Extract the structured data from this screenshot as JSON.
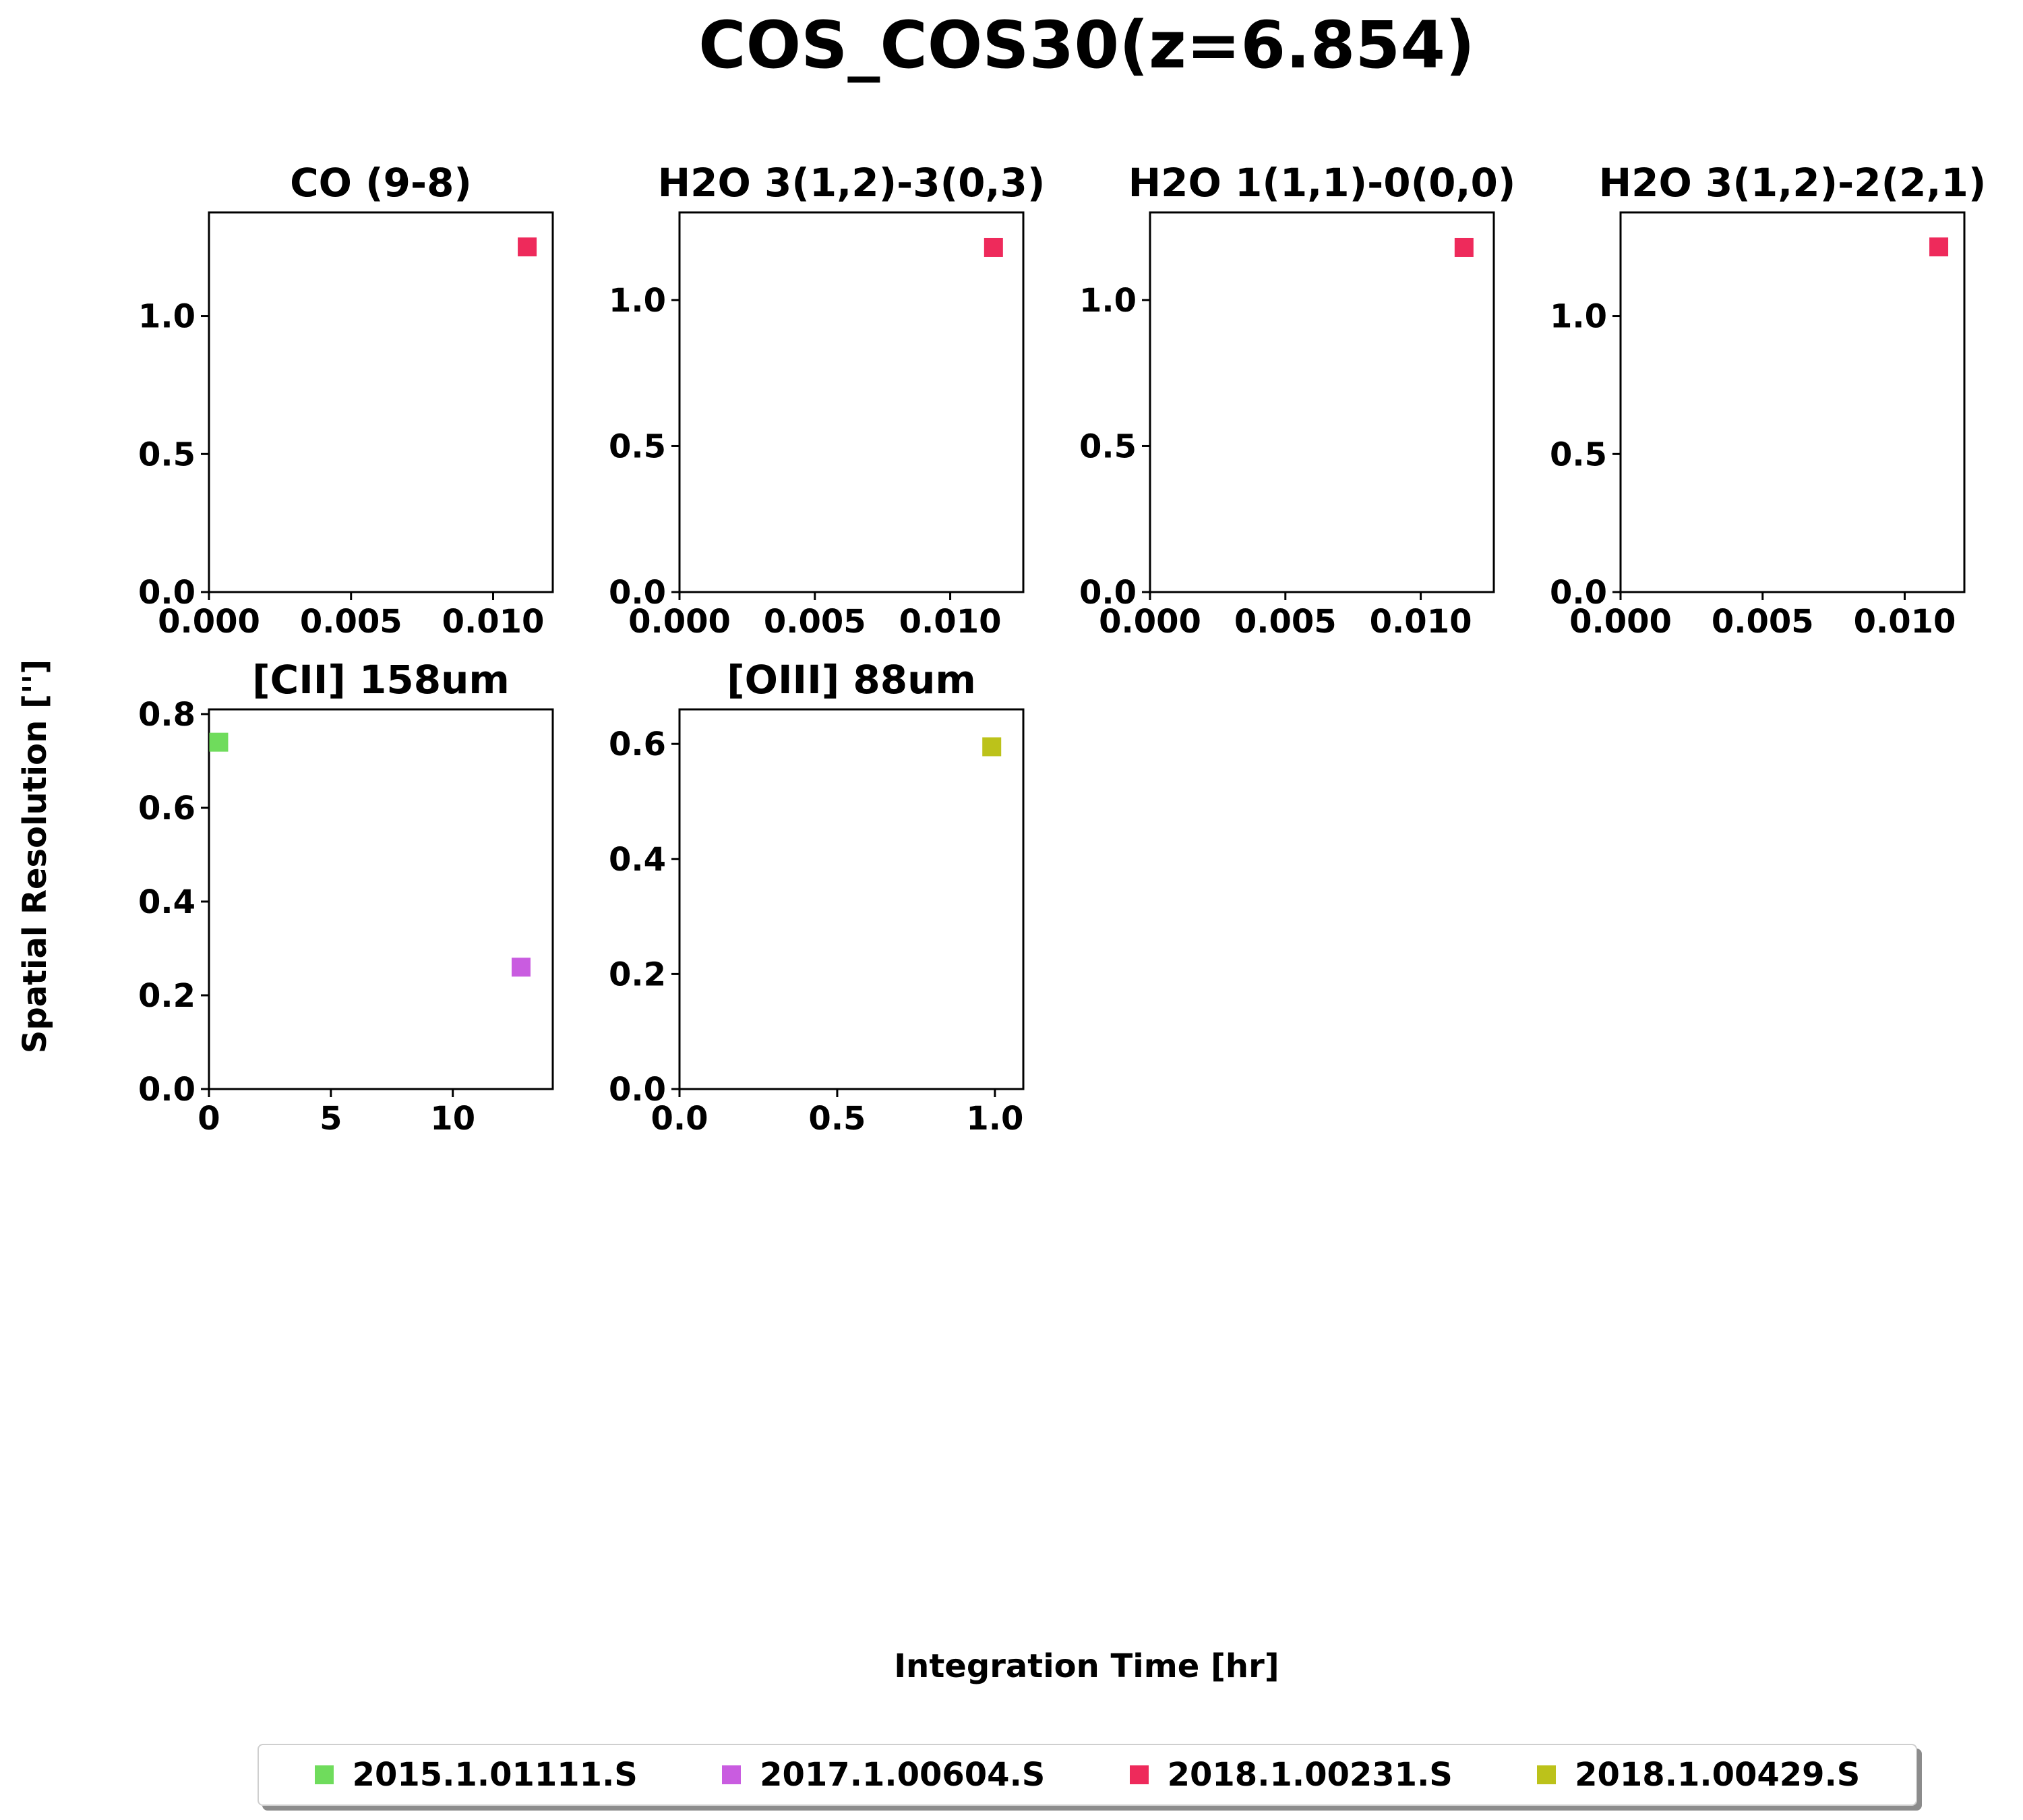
{
  "figure": {
    "title": "COS_COS30(z=6.854)",
    "xlabel": "Integration Time [hr]",
    "ylabel": "Spatial Resolution ['']"
  },
  "colors": {
    "2015.1.01111.S": "#6fdc5c",
    "2017.1.00604.S": "#c95ce0",
    "2018.1.00231.S": "#ee2a5b",
    "2018.1.00429.S": "#bcc21a"
  },
  "legend": [
    {
      "label": "2015.1.01111.S",
      "color": "#6fdc5c"
    },
    {
      "label": "2017.1.00604.S",
      "color": "#c95ce0"
    },
    {
      "label": "2018.1.00231.S",
      "color": "#ee2a5b"
    },
    {
      "label": "2018.1.00429.S",
      "color": "#bcc21a"
    }
  ],
  "chart_data": [
    {
      "type": "scatter",
      "title": "CO (9-8)",
      "xlim": [
        0,
        0.0121
      ],
      "ylim": [
        0,
        1.375
      ],
      "xticks": [
        "0.000",
        "0.005",
        "0.010"
      ],
      "xtick_values": [
        0,
        0.005,
        0.01
      ],
      "yticks": [
        "0.0",
        "0.5",
        "1.0"
      ],
      "ytick_values": [
        0,
        0.5,
        1.0
      ],
      "points": [
        {
          "x": 0.0112,
          "y": 1.25,
          "project": "2018.1.00231.S"
        }
      ]
    },
    {
      "type": "scatter",
      "title": "H2O 3(1,2)-3(0,3)",
      "xlim": [
        0,
        0.0127
      ],
      "ylim": [
        0,
        1.3
      ],
      "xticks": [
        "0.000",
        "0.005",
        "0.010"
      ],
      "xtick_values": [
        0,
        0.005,
        0.01
      ],
      "yticks": [
        "0.0",
        "0.5",
        "1.0"
      ],
      "ytick_values": [
        0,
        0.5,
        1.0
      ],
      "points": [
        {
          "x": 0.0116,
          "y": 1.18,
          "project": "2018.1.00231.S"
        }
      ]
    },
    {
      "type": "scatter",
      "title": "H2O 1(1,1)-0(0,0)",
      "xlim": [
        0,
        0.0127
      ],
      "ylim": [
        0,
        1.3
      ],
      "xticks": [
        "0.000",
        "0.005",
        "0.010"
      ],
      "xtick_values": [
        0,
        0.005,
        0.01
      ],
      "yticks": [
        "0.0",
        "0.5",
        "1.0"
      ],
      "ytick_values": [
        0,
        0.5,
        1.0
      ],
      "points": [
        {
          "x": 0.0116,
          "y": 1.18,
          "project": "2018.1.00231.S"
        }
      ]
    },
    {
      "type": "scatter",
      "title": "H2O 3(1,2)-2(2,1)",
      "xlim": [
        0,
        0.0121
      ],
      "ylim": [
        0,
        1.375
      ],
      "xticks": [
        "0.000",
        "0.005",
        "0.010"
      ],
      "xtick_values": [
        0,
        0.005,
        0.01
      ],
      "yticks": [
        "0.0",
        "0.5",
        "1.0"
      ],
      "ytick_values": [
        0,
        0.5,
        1.0
      ],
      "points": [
        {
          "x": 0.0112,
          "y": 1.25,
          "project": "2018.1.00231.S"
        }
      ]
    },
    {
      "type": "scatter",
      "title": "[CII] 158um",
      "xlim": [
        0,
        14.1
      ],
      "ylim": [
        0,
        0.81
      ],
      "xticks": [
        "0",
        "5",
        "10"
      ],
      "xtick_values": [
        0,
        5,
        10
      ],
      "yticks": [
        "0.0",
        "0.2",
        "0.4",
        "0.6",
        "0.8"
      ],
      "ytick_values": [
        0,
        0.2,
        0.4,
        0.6,
        0.8
      ],
      "points": [
        {
          "x": 0.4,
          "y": 0.74,
          "project": "2015.1.01111.S"
        },
        {
          "x": 12.8,
          "y": 0.26,
          "project": "2017.1.00604.S"
        }
      ]
    },
    {
      "type": "scatter",
      "title": "[OIII] 88um",
      "xlim": [
        0,
        1.09
      ],
      "ylim": [
        0,
        0.66
      ],
      "xticks": [
        "0.0",
        "0.5",
        "1.0"
      ],
      "xtick_values": [
        0,
        0.5,
        1.0
      ],
      "yticks": [
        "0.0",
        "0.2",
        "0.4",
        "0.6"
      ],
      "ytick_values": [
        0,
        0.2,
        0.4,
        0.6
      ],
      "points": [
        {
          "x": 0.99,
          "y": 0.595,
          "project": "2018.1.00429.S"
        }
      ]
    }
  ]
}
